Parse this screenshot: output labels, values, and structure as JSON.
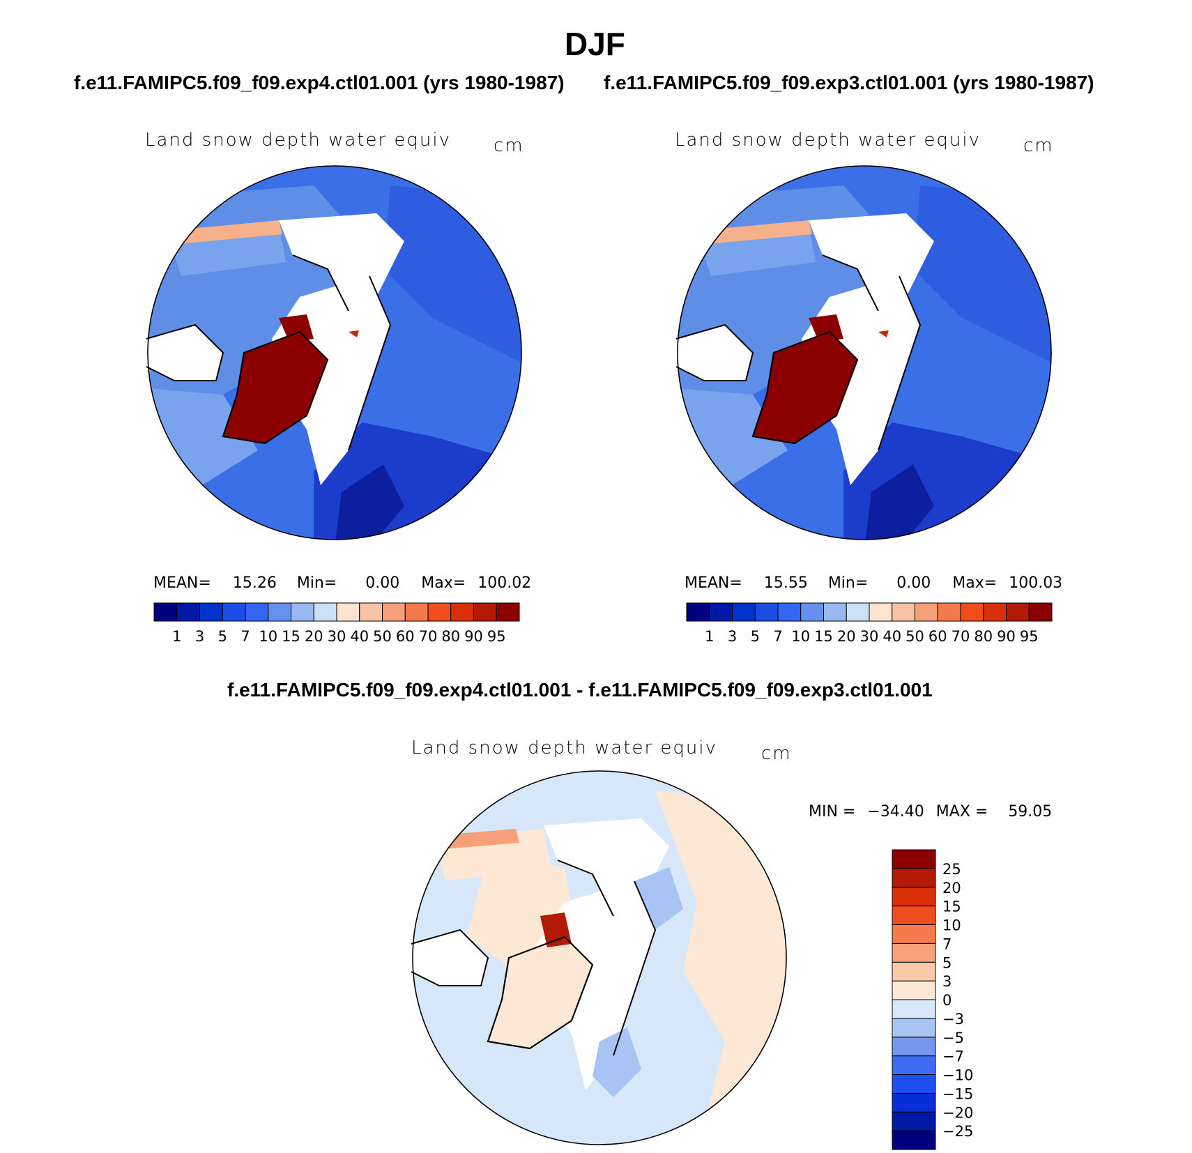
{
  "header": {
    "season": "DJF",
    "left_case": "f.e11.FAMIPC5.f09_f09.exp4.ctl01.001 (yrs 1980-1987)",
    "right_case": "f.e11.FAMIPC5.f09_f09.exp3.ctl01.001 (yrs 1980-1987)",
    "diff_title": "f.e11.FAMIPC5.f09_f09.exp4.ctl01.001 - f.e11.FAMIPC5.f09_f09.exp3.ctl01.001"
  },
  "panels": [
    {
      "variable": "Land snow depth water equiv",
      "units": "cm",
      "mean_label": "MEAN=",
      "mean": "15.26",
      "min_label": "Min=",
      "min": "0.00",
      "max_label": "Max=",
      "max": "100.02"
    },
    {
      "variable": "Land snow depth water equiv",
      "units": "cm",
      "mean_label": "MEAN=",
      "mean": "15.55",
      "min_label": "Min=",
      "min": "0.00",
      "max_label": "Max=",
      "max": "100.03"
    }
  ],
  "diff_panel": {
    "variable": "Land snow depth water equiv",
    "units": "cm",
    "min_label": "MIN =",
    "min": "−34.40",
    "max_label": "MAX =",
    "max": "59.05"
  },
  "colorbar_abs": {
    "colors": [
      "#00007f",
      "#001aa6",
      "#0033cc",
      "#1a4de6",
      "#3366f2",
      "#6690ee",
      "#99b8f2",
      "#cce0f7",
      "#fde3d0",
      "#f9c4a6",
      "#f6a07a",
      "#f47a4d",
      "#f04d1f",
      "#d9300a",
      "#b31a05",
      "#8b0000"
    ],
    "labels": [
      "1",
      "3",
      "5",
      "7",
      "10",
      "15",
      "20",
      "30",
      "40",
      "50",
      "60",
      "70",
      "80",
      "90",
      "95"
    ]
  },
  "colorbar_diff": {
    "colors": [
      "#00007f",
      "#001aa6",
      "#0a2ed6",
      "#1e4ff0",
      "#3f6bf4",
      "#7595ee",
      "#a8c4f4",
      "#d7e7fa",
      "#fde8d6",
      "#fac8a8",
      "#f7a27a",
      "#f47a4d",
      "#f04d1f",
      "#d9300a",
      "#b31a05",
      "#8b0000"
    ],
    "labels": [
      "25",
      "20",
      "15",
      "10",
      "7",
      "5",
      "3",
      "0",
      "−3",
      "−5",
      "−7",
      "−10",
      "−15",
      "−20",
      "−25"
    ]
  }
}
